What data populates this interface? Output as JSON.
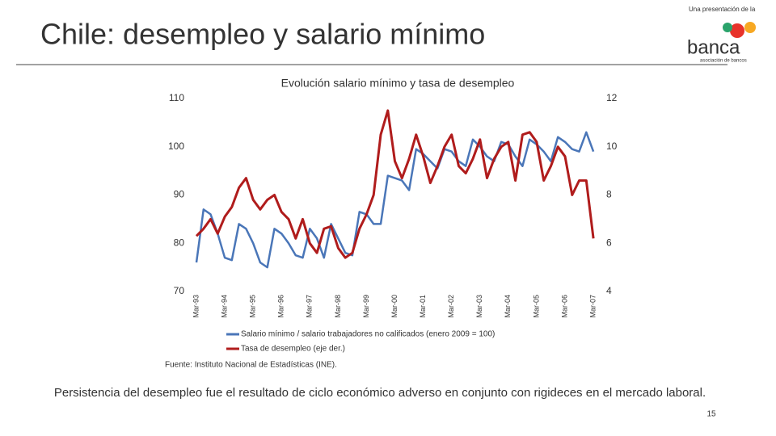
{
  "slide": {
    "title": "Chile: desempleo y salario mínimo",
    "logo_top": "Una presentación de la",
    "logo_name": "banca",
    "logo_sub": "asociación de bancos",
    "conclusion": "Persistencia del desempleo fue el resultado de ciclo económico adverso en conjunto con rigideces en el mercado laboral.",
    "page": "15"
  },
  "chart_data": {
    "type": "line",
    "title": "Evolución salario mínimo y tasa de desempleo",
    "source": "Fuente: Instituto Nacional de Estadísticas (INE).",
    "x": [
      "1993-03",
      "1993-06",
      "1993-09",
      "1993-12",
      "1994-03",
      "1994-06",
      "1994-09",
      "1994-12",
      "1995-03",
      "1995-06",
      "1995-09",
      "1995-12",
      "1996-03",
      "1996-06",
      "1996-09",
      "1996-12",
      "1997-03",
      "1997-06",
      "1997-09",
      "1997-12",
      "1998-03",
      "1998-06",
      "1998-09",
      "1998-12",
      "1999-03",
      "1999-06",
      "1999-09",
      "1999-12",
      "2000-03",
      "2000-06",
      "2000-09",
      "2000-12",
      "2001-03",
      "2001-06",
      "2001-09",
      "2001-12",
      "2002-03",
      "2002-06",
      "2002-09",
      "2002-12",
      "2003-03",
      "2003-06",
      "2003-09",
      "2003-12",
      "2004-03",
      "2004-06",
      "2004-09",
      "2004-12",
      "2005-03",
      "2005-06",
      "2005-09",
      "2005-12",
      "2006-03",
      "2006-06",
      "2006-09",
      "2006-12",
      "2007-03"
    ],
    "xlim": [
      "1993-03",
      "2007-04"
    ],
    "xticks": [
      {
        "value": "1993-03",
        "label": "Mar-93"
      },
      {
        "value": "1994-03",
        "label": "Mar-94"
      },
      {
        "value": "1995-03",
        "label": "Mar-95"
      },
      {
        "value": "1996-03",
        "label": "Mar-96"
      },
      {
        "value": "1997-03",
        "label": "Mar-97"
      },
      {
        "value": "1998-03",
        "label": "Mar-98"
      },
      {
        "value": "1999-03",
        "label": "Mar-99"
      },
      {
        "value": "2000-03",
        "label": "Mar-00"
      },
      {
        "value": "2001-03",
        "label": "Mar-01"
      },
      {
        "value": "2002-03",
        "label": "Mar-02"
      },
      {
        "value": "2003-03",
        "label": "Mar-03"
      },
      {
        "value": "2004-03",
        "label": "Mar-04"
      },
      {
        "value": "2005-03",
        "label": "Mar-05"
      },
      {
        "value": "2006-03",
        "label": "Mar-06"
      },
      {
        "value": "2007-03",
        "label": "Mar-07"
      }
    ],
    "ylim": [
      70,
      110
    ],
    "yticks": [
      70,
      80,
      90,
      100,
      110
    ],
    "y2lim": [
      4,
      12
    ],
    "y2ticks": [
      4,
      6,
      8,
      10,
      12
    ],
    "series": [
      {
        "name": "Salario mínimo / salario trabajadores no calificados (enero 2009 = 100)",
        "color": "#4a76b8",
        "values": [
          76,
          87,
          86,
          82,
          77,
          76.5,
          84,
          83,
          80,
          76,
          75,
          83,
          82,
          80,
          77.5,
          77,
          83,
          81,
          77,
          84,
          81,
          78,
          77.5,
          86.5,
          86,
          84,
          84,
          94,
          93.5,
          93,
          91,
          99.5,
          98.5,
          97,
          95.5,
          99.5,
          99,
          97,
          96,
          101.5,
          100,
          98,
          97,
          101,
          100.5,
          98,
          96,
          101.5,
          100.5,
          99,
          97,
          102,
          101,
          99.5,
          99,
          103,
          99
        ]
      },
      {
        "name": "Tasa de desempleo (eje der.)",
        "color": "#b01c1c",
        "axis": "y2",
        "values": [
          6.3,
          6.6,
          7.0,
          6.4,
          7.1,
          7.5,
          8.3,
          8.7,
          7.8,
          7.4,
          7.8,
          8.0,
          7.3,
          7.0,
          6.2,
          7.0,
          6.0,
          5.6,
          6.6,
          6.7,
          5.8,
          5.4,
          5.6,
          6.6,
          7.2,
          8.0,
          10.5,
          11.5,
          9.4,
          8.7,
          9.5,
          10.5,
          9.6,
          8.5,
          9.2,
          10.0,
          10.5,
          9.2,
          8.9,
          9.5,
          10.3,
          8.7,
          9.5,
          10.0,
          10.2,
          8.6,
          10.5,
          10.6,
          10.2,
          8.6,
          9.2,
          10.0,
          9.6,
          8.0,
          8.6,
          8.6,
          6.2
        ]
      }
    ]
  }
}
